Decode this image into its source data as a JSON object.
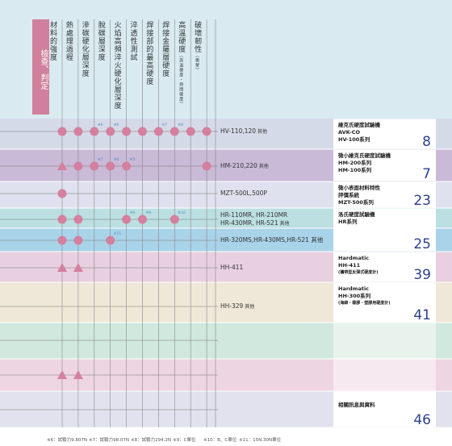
{
  "header": {
    "category": "檢查、判定",
    "columns": [
      {
        "label": "材料的強度"
      },
      {
        "label": "熱處理過程"
      },
      {
        "label": "滲碳硬化層深度"
      },
      {
        "label": "脫碳層深度"
      },
      {
        "label": "火焰高頻淬火硬化層深度"
      },
      {
        "label": "淬透性測試"
      },
      {
        "label": "焊接部的最高硬度"
      },
      {
        "label": "焊接金屬層硬度"
      },
      {
        "label": "高溫硬度",
        "note": "（高溫硬度・熱間硬度）"
      },
      {
        "label": "破壞韌性",
        "note": "（衝擊）"
      }
    ]
  },
  "rows": [
    {
      "lines": [
        "HV-110,120"
      ],
      "suffix": "其他",
      "marks": [
        {
          "shape": "circle"
        },
        {
          "shape": "circle"
        },
        {
          "shape": "circle",
          "note": "※6"
        },
        {
          "shape": "circle",
          "note": "※6"
        },
        {
          "shape": "circle"
        },
        {
          "shape": "circle"
        },
        {
          "shape": "circle",
          "note": "※7"
        },
        {
          "shape": "circle",
          "note": "※8"
        },
        {
          "shape": "circle"
        },
        {
          "shape": "circle"
        }
      ]
    },
    {
      "lines": [
        "HM-210,220"
      ],
      "suffix": "其他",
      "marks": [
        {
          "shape": "triangle"
        },
        {
          "shape": "circle"
        },
        {
          "shape": "circle",
          "note": "※7"
        },
        {
          "shape": "circle",
          "note": "※6"
        },
        {
          "shape": "circle",
          "note": "※5"
        },
        null,
        null,
        null,
        null,
        {
          "shape": "circle"
        }
      ]
    },
    {
      "lines": [
        "MZT-500L,500P"
      ],
      "marks": [
        {
          "shape": "circle"
        },
        null,
        null,
        null,
        null,
        null,
        null,
        null,
        null,
        null
      ]
    },
    {
      "lines": [
        "HR-110MR, HR-210MR",
        "HR-430MR, HR-521"
      ],
      "suffix": "其他",
      "marks": [
        {
          "shape": "circle"
        },
        {
          "shape": "circle"
        },
        null,
        null,
        {
          "shape": "circle",
          "note": "※9"
        },
        {
          "shape": "circle",
          "note": "※9"
        },
        null,
        {
          "shape": "circle",
          "note": "※10"
        },
        null,
        null
      ]
    },
    {
      "lines": [
        "HR-320MS,HR-430MS,HR-521 其他"
      ],
      "marks": [
        {
          "shape": "circle"
        },
        {
          "shape": "circle"
        },
        null,
        {
          "shape": "circle",
          "note": "※11"
        },
        null,
        null,
        null,
        null,
        null,
        null
      ]
    },
    {
      "lines": [
        "HH-411"
      ],
      "marks": [
        {
          "shape": "triangle"
        },
        {
          "shape": "triangle"
        },
        null,
        null,
        null,
        null,
        null,
        null,
        null,
        null
      ]
    },
    {
      "lines": [
        "HH-329"
      ],
      "suffix": "其他",
      "marks": [
        null,
        null,
        null,
        null,
        null,
        null,
        null,
        null,
        null,
        null
      ]
    },
    {
      "marks": [
        null,
        null,
        null,
        null,
        null,
        null,
        null,
        null,
        null,
        null
      ]
    },
    {
      "marks": [
        {
          "shape": "triangle"
        },
        {
          "shape": "triangle"
        },
        null,
        null,
        null,
        null,
        null,
        null,
        null,
        null
      ]
    },
    {
      "marks": [
        null,
        null,
        null,
        null,
        null,
        null,
        null,
        null,
        null,
        null
      ]
    }
  ],
  "products": [
    {
      "lines": [
        "維克氏硬度試驗機",
        "AVK-CO",
        "HV-100系列"
      ],
      "page": "8"
    },
    {
      "lines": [
        "微小維克氏硬度試驗機",
        "HM-200系列",
        "HM-100系列"
      ],
      "page": "7"
    },
    {
      "lines": [
        "微小表面材料特性",
        "評價系統",
        "MZT-500系列"
      ],
      "page": "23"
    },
    {
      "lines": [
        "洛氏硬度試驗機",
        "HR系列"
      ],
      "page": "25"
    },
    {
      "lines": [
        "Hardmatic",
        "HH-411",
        "(攜帶型反彈式硬度計)"
      ],
      "page": "39"
    },
    {
      "lines": [
        "Hardmatic",
        "HH-300系列",
        "(海綿・橡膠・塑膠用硬度計)"
      ],
      "page": "41"
    },
    {
      "lines": [
        "相關訊息與資料"
      ],
      "page": "46"
    }
  ],
  "footnotes": [
    "※6：試驗力9.807N",
    "※7：試驗力98.07N",
    "※8：試驗力294.2N",
    "※9：C單位",
    "※10：B、C單位",
    "※11：15N,30N單位"
  ]
}
